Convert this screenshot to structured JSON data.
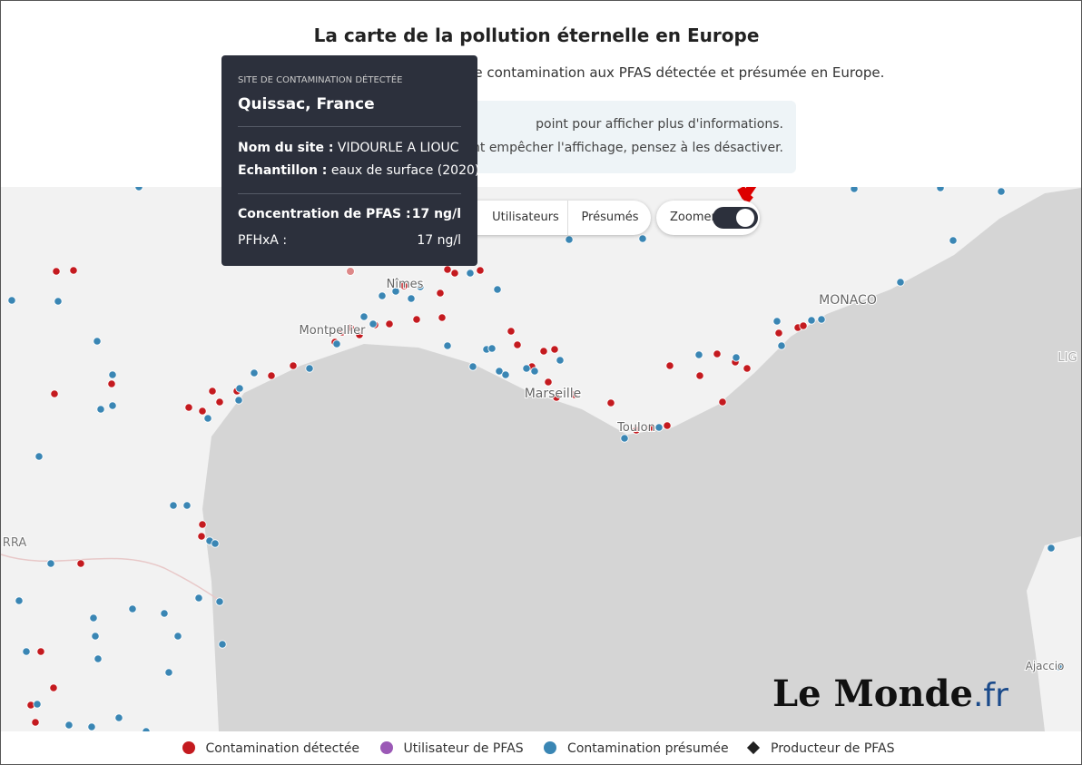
{
  "header": {
    "title": "La carte de la pollution éternelle en Europe",
    "subtitle": "ites de contamination aux PFAS détectée et présumée en Europe."
  },
  "info": {
    "lines": [
      "point pour afficher plus d'informations.",
      "vent empêcher l'affichage, pensez à les désactiver."
    ]
  },
  "tooltip": {
    "kicker": "SITE DE CONTAMINATION DÉTECTÉE",
    "place": "Quissac, France",
    "rows": [
      [
        "Nom du site :",
        "VIDOURLE A LIOUC"
      ],
      [
        "Echantillon :",
        "eaux de surface (2020)"
      ]
    ],
    "measures": [
      [
        "Concentration de PFAS :",
        "17 ng/l"
      ],
      [
        "PFHxA :",
        "17 ng/l"
      ]
    ]
  },
  "controls": {
    "buttons": [
      "Utilisateurs",
      "Présumés"
    ],
    "toggle": "Zoomer"
  },
  "map": {
    "labels": [
      "Nîmes",
      "Montpellier",
      "Marseille",
      "Toulon",
      "MONACO",
      "LIG",
      "RRA",
      "Ajaccio"
    ]
  },
  "logo": {
    "name": "Le Monde",
    "suffix": ".fr"
  },
  "legend": [
    "Contamination détectée",
    "Utilisateur de PFAS",
    "Contamination présumée",
    "Producteur de PFAS"
  ]
}
